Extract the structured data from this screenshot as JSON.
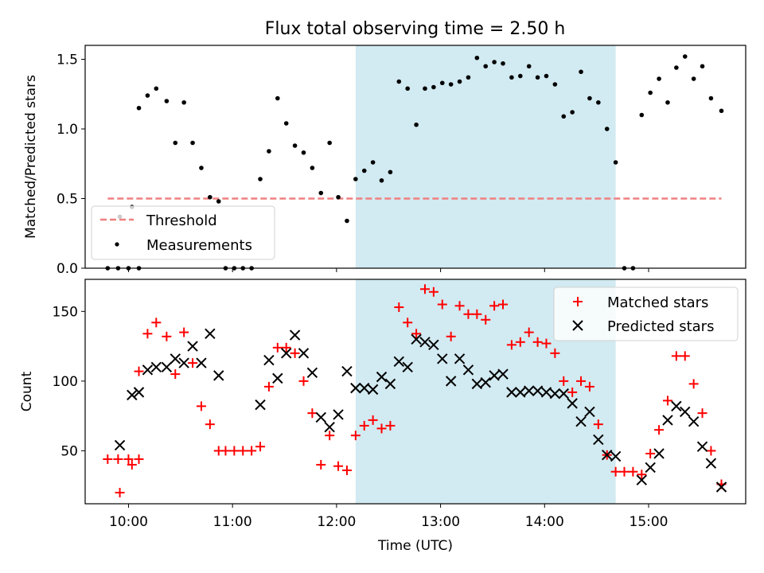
{
  "figure": {
    "title": "Flux total observing time = 2.50 h"
  },
  "chart_data": [
    {
      "type": "scatter",
      "panel": "top",
      "ylabel": "Matched/Predicted stars",
      "xlabel": "",
      "ylim": [
        0,
        1.6
      ],
      "xlim": [
        "09:35",
        "15:56"
      ],
      "yticks": [
        0.0,
        0.5,
        1.0,
        1.5
      ],
      "ytick_labels": [
        "0.0",
        "0.5",
        "1.0",
        "1.5"
      ],
      "grid": false,
      "legend": {
        "placement": "lower-left",
        "entries": [
          "Threshold",
          "Measurements"
        ]
      },
      "shaded_region": {
        "x_start": "12:11",
        "x_end": "14:41",
        "color": "#add8e6"
      },
      "threshold": {
        "name": "Threshold",
        "y": 0.5,
        "x_start": "09:48",
        "x_end": "15:42",
        "color": "#f08080",
        "style": "dashed"
      },
      "series": [
        {
          "name": "Measurements",
          "color": "#000000",
          "marker": "dot",
          "points": [
            [
              "09:48",
              0.0
            ],
            [
              "09:54",
              0.0
            ],
            [
              "10:00",
              0.0
            ],
            [
              "10:06",
              0.0
            ],
            [
              "09:55",
              0.37
            ],
            [
              "10:02",
              0.44
            ],
            [
              "10:06",
              1.15
            ],
            [
              "10:11",
              1.24
            ],
            [
              "10:16",
              1.29
            ],
            [
              "10:22",
              1.2
            ],
            [
              "10:27",
              0.9
            ],
            [
              "10:32",
              1.19
            ],
            [
              "10:37",
              0.9
            ],
            [
              "10:42",
              0.72
            ],
            [
              "10:47",
              0.51
            ],
            [
              "10:52",
              0.48
            ],
            [
              "10:56",
              0.0
            ],
            [
              "11:01",
              0.0
            ],
            [
              "11:06",
              0.0
            ],
            [
              "11:11",
              0.0
            ],
            [
              "11:16",
              0.64
            ],
            [
              "11:21",
              0.84
            ],
            [
              "11:26",
              1.22
            ],
            [
              "11:31",
              1.04
            ],
            [
              "11:36",
              0.88
            ],
            [
              "11:41",
              0.83
            ],
            [
              "11:46",
              0.72
            ],
            [
              "11:51",
              0.54
            ],
            [
              "11:56",
              0.9
            ],
            [
              "12:01",
              0.51
            ],
            [
              "12:06",
              0.34
            ],
            [
              "12:11",
              0.64
            ],
            [
              "12:16",
              0.7
            ],
            [
              "12:21",
              0.76
            ],
            [
              "12:26",
              0.63
            ],
            [
              "12:31",
              0.69
            ],
            [
              "12:36",
              1.34
            ],
            [
              "12:41",
              1.29
            ],
            [
              "12:46",
              1.03
            ],
            [
              "12:51",
              1.29
            ],
            [
              "12:56",
              1.3
            ],
            [
              "13:01",
              1.33
            ],
            [
              "13:06",
              1.32
            ],
            [
              "13:11",
              1.34
            ],
            [
              "13:16",
              1.37
            ],
            [
              "13:21",
              1.51
            ],
            [
              "13:26",
              1.45
            ],
            [
              "13:31",
              1.48
            ],
            [
              "13:36",
              1.47
            ],
            [
              "13:41",
              1.37
            ],
            [
              "13:46",
              1.38
            ],
            [
              "13:51",
              1.45
            ],
            [
              "13:56",
              1.37
            ],
            [
              "14:01",
              1.38
            ],
            [
              "14:06",
              1.32
            ],
            [
              "14:11",
              1.09
            ],
            [
              "14:16",
              1.12
            ],
            [
              "14:21",
              1.41
            ],
            [
              "14:26",
              1.22
            ],
            [
              "14:31",
              1.19
            ],
            [
              "14:36",
              1.0
            ],
            [
              "14:41",
              0.76
            ],
            [
              "14:46",
              0.0
            ],
            [
              "14:51",
              0.0
            ],
            [
              "14:56",
              1.1
            ],
            [
              "15:01",
              1.26
            ],
            [
              "15:06",
              1.36
            ],
            [
              "15:11",
              1.19
            ],
            [
              "15:16",
              1.44
            ],
            [
              "15:21",
              1.52
            ],
            [
              "15:26",
              1.36
            ],
            [
              "15:31",
              1.45
            ],
            [
              "15:36",
              1.22
            ],
            [
              "15:42",
              1.13
            ]
          ]
        }
      ]
    },
    {
      "type": "scatter",
      "panel": "bottom",
      "ylabel": "Count",
      "xlabel": "Time (UTC)",
      "ylim": [
        12,
        173
      ],
      "xlim": [
        "09:35",
        "15:56"
      ],
      "yticks": [
        50,
        100,
        150
      ],
      "ytick_labels": [
        "50",
        "100",
        "150"
      ],
      "xticks": [
        "10:00",
        "11:00",
        "12:00",
        "13:00",
        "14:00",
        "15:00"
      ],
      "xtick_labels": [
        "10:00",
        "11:00",
        "12:00",
        "13:00",
        "14:00",
        "15:00"
      ],
      "grid": false,
      "legend": {
        "placement": "top-right",
        "entries": [
          "Matched stars",
          "Predicted stars"
        ]
      },
      "shaded_region": {
        "x_start": "12:11",
        "x_end": "14:41",
        "color": "#add8e6"
      },
      "series": [
        {
          "name": "Matched stars",
          "color": "#ff0000",
          "marker": "plus",
          "points": [
            [
              "09:48",
              44
            ],
            [
              "09:54",
              44
            ],
            [
              "10:00",
              44
            ],
            [
              "10:06",
              44
            ],
            [
              "09:55",
              20
            ],
            [
              "10:02",
              40
            ],
            [
              "10:06",
              107
            ],
            [
              "10:11",
              134
            ],
            [
              "10:16",
              142
            ],
            [
              "10:22",
              132
            ],
            [
              "10:27",
              105
            ],
            [
              "10:32",
              135
            ],
            [
              "10:37",
              113
            ],
            [
              "10:42",
              82
            ],
            [
              "10:47",
              69
            ],
            [
              "10:52",
              50
            ],
            [
              "10:56",
              50
            ],
            [
              "11:01",
              50
            ],
            [
              "11:06",
              50
            ],
            [
              "11:11",
              50
            ],
            [
              "11:16",
              53
            ],
            [
              "11:21",
              96
            ],
            [
              "11:26",
              124
            ],
            [
              "11:31",
              124
            ],
            [
              "11:36",
              120
            ],
            [
              "11:41",
              100
            ],
            [
              "11:46",
              77
            ],
            [
              "11:51",
              40
            ],
            [
              "11:56",
              61
            ],
            [
              "12:01",
              39
            ],
            [
              "12:06",
              36
            ],
            [
              "12:11",
              61
            ],
            [
              "12:16",
              68
            ],
            [
              "12:21",
              72
            ],
            [
              "12:26",
              66
            ],
            [
              "12:31",
              68
            ],
            [
              "12:36",
              153
            ],
            [
              "12:41",
              142
            ],
            [
              "12:46",
              134
            ],
            [
              "12:51",
              166
            ],
            [
              "12:56",
              164
            ],
            [
              "13:01",
              155
            ],
            [
              "13:06",
              132
            ],
            [
              "13:11",
              154
            ],
            [
              "13:16",
              148
            ],
            [
              "13:21",
              148
            ],
            [
              "13:26",
              144
            ],
            [
              "13:31",
              154
            ],
            [
              "13:36",
              155
            ],
            [
              "13:41",
              126
            ],
            [
              "13:46",
              128
            ],
            [
              "13:51",
              135
            ],
            [
              "13:56",
              128
            ],
            [
              "14:01",
              127
            ],
            [
              "14:06",
              120
            ],
            [
              "14:11",
              100
            ],
            [
              "14:16",
              92
            ],
            [
              "14:21",
              100
            ],
            [
              "14:26",
              96
            ],
            [
              "14:31",
              69
            ],
            [
              "14:36",
              47
            ],
            [
              "14:41",
              35
            ],
            [
              "14:46",
              35
            ],
            [
              "14:51",
              35
            ],
            [
              "14:56",
              33
            ],
            [
              "15:01",
              48
            ],
            [
              "15:06",
              65
            ],
            [
              "15:11",
              86
            ],
            [
              "15:16",
              118
            ],
            [
              "15:21",
              118
            ],
            [
              "15:26",
              98
            ],
            [
              "15:31",
              77
            ],
            [
              "15:36",
              50
            ],
            [
              "15:42",
              26
            ]
          ]
        },
        {
          "name": "Predicted stars",
          "color": "#000000",
          "marker": "x",
          "points": [
            [
              "09:55",
              54
            ],
            [
              "10:02",
              90
            ],
            [
              "10:06",
              92
            ],
            [
              "10:11",
              108
            ],
            [
              "10:16",
              110
            ],
            [
              "10:22",
              110
            ],
            [
              "10:27",
              116
            ],
            [
              "10:32",
              113
            ],
            [
              "10:37",
              125
            ],
            [
              "10:42",
              113
            ],
            [
              "10:47",
              134
            ],
            [
              "10:52",
              104
            ],
            [
              "11:16",
              83
            ],
            [
              "11:21",
              115
            ],
            [
              "11:26",
              102
            ],
            [
              "11:31",
              120
            ],
            [
              "11:36",
              133
            ],
            [
              "11:41",
              120
            ],
            [
              "11:46",
              106
            ],
            [
              "11:51",
              74
            ],
            [
              "11:56",
              67
            ],
            [
              "12:01",
              76
            ],
            [
              "12:06",
              107
            ],
            [
              "12:11",
              95
            ],
            [
              "12:16",
              95
            ],
            [
              "12:21",
              94
            ],
            [
              "12:26",
              103
            ],
            [
              "12:31",
              98
            ],
            [
              "12:36",
              114
            ],
            [
              "12:41",
              110
            ],
            [
              "12:46",
              130
            ],
            [
              "12:51",
              128
            ],
            [
              "12:56",
              126
            ],
            [
              "13:01",
              116
            ],
            [
              "13:06",
              100
            ],
            [
              "13:11",
              116
            ],
            [
              "13:16",
              108
            ],
            [
              "13:21",
              98
            ],
            [
              "13:26",
              99
            ],
            [
              "13:31",
              104
            ],
            [
              "13:36",
              105
            ],
            [
              "13:41",
              92
            ],
            [
              "13:46",
              92
            ],
            [
              "13:51",
              93
            ],
            [
              "13:56",
              93
            ],
            [
              "14:01",
              92
            ],
            [
              "14:06",
              91
            ],
            [
              "14:11",
              91
            ],
            [
              "14:16",
              84
            ],
            [
              "14:21",
              71
            ],
            [
              "14:26",
              78
            ],
            [
              "14:31",
              58
            ],
            [
              "14:36",
              47
            ],
            [
              "14:41",
              46
            ],
            [
              "14:56",
              29
            ],
            [
              "15:01",
              38
            ],
            [
              "15:06",
              48
            ],
            [
              "15:11",
              72
            ],
            [
              "15:16",
              82
            ],
            [
              "15:21",
              78
            ],
            [
              "15:26",
              71
            ],
            [
              "15:31",
              53
            ],
            [
              "15:36",
              41
            ],
            [
              "15:42",
              24
            ]
          ]
        }
      ]
    }
  ]
}
